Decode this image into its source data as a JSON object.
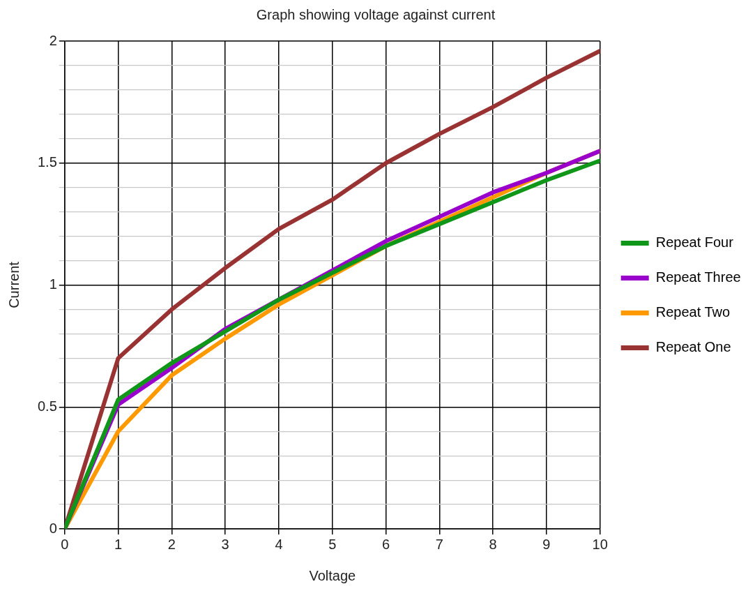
{
  "chart_data": {
    "type": "line",
    "title": "Graph showing voltage against current",
    "xlabel": "Voltage",
    "ylabel": "Current",
    "x": [
      0,
      1,
      2,
      3,
      4,
      5,
      6,
      7,
      8,
      9,
      10
    ],
    "series": [
      {
        "name": "Repeat Four",
        "color": "#109618",
        "values": [
          0,
          0.53,
          0.68,
          0.81,
          0.94,
          1.05,
          1.16,
          1.25,
          1.34,
          1.43,
          1.51
        ]
      },
      {
        "name": "Repeat Three",
        "color": "#9900cc",
        "values": [
          0,
          0.51,
          0.66,
          0.82,
          0.94,
          1.06,
          1.18,
          1.28,
          1.38,
          1.46,
          1.55
        ]
      },
      {
        "name": "Repeat Two",
        "color": "#ff9900",
        "values": [
          0,
          0.4,
          0.63,
          0.78,
          0.92,
          1.04,
          1.16,
          1.26,
          1.36,
          1.46,
          1.55
        ]
      },
      {
        "name": "Repeat One",
        "color": "#993333",
        "values": [
          0,
          0.7,
          0.9,
          1.07,
          1.23,
          1.35,
          1.5,
          1.62,
          1.73,
          1.85,
          1.96
        ]
      }
    ],
    "xlim": [
      0,
      10
    ],
    "xticks": [
      0,
      1,
      2,
      3,
      4,
      5,
      6,
      7,
      8,
      9,
      10
    ],
    "ylim": [
      0,
      2
    ],
    "yticks": [
      0,
      {
        "value": 0.1,
        "label": null
      },
      {
        "value": 0.2,
        "label": null
      },
      {
        "value": 0.3,
        "label": null
      },
      {
        "value": 0.4,
        "label": null
      },
      0.5,
      {
        "value": 0.6,
        "label": null
      },
      {
        "value": 0.7,
        "label": null
      },
      {
        "value": 0.8,
        "label": null
      },
      {
        "value": 0.9,
        "label": null
      },
      1,
      {
        "value": 1.1,
        "label": null
      },
      {
        "value": 1.2,
        "label": null
      },
      {
        "value": 1.3,
        "label": null
      },
      {
        "value": 1.4,
        "label": null
      },
      1.5,
      {
        "value": 1.6,
        "label": null
      },
      {
        "value": 1.7,
        "label": null
      },
      {
        "value": 1.8,
        "label": null
      },
      {
        "value": 1.9,
        "label": null
      },
      2
    ],
    "grid": true,
    "legend": "right",
    "marker": "none",
    "line_style": "solid"
  }
}
